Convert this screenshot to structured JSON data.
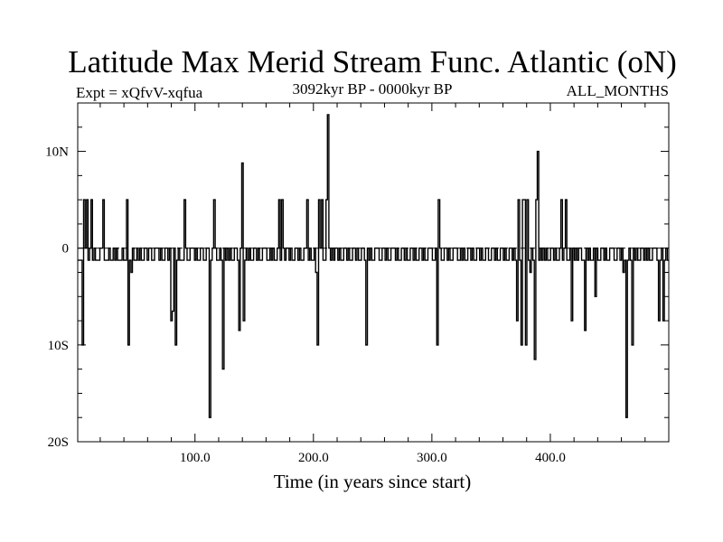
{
  "chart_data": {
    "type": "line",
    "title": "Latitude Max Merid Stream Func. Atlantic (oN)",
    "subtitle_left": "Expt = xQfvV-xqfua",
    "subtitle_center": "3092kyr BP - 0000kyr BP",
    "subtitle_right": "ALL_MONTHS",
    "xlabel": "Time (in years since start)",
    "ylabel": "",
    "xlim": [
      1,
      500
    ],
    "ylim": [
      -20,
      15
    ],
    "x_ticks": [
      {
        "value": 100,
        "label": "100.0"
      },
      {
        "value": 200,
        "label": "200.0"
      },
      {
        "value": 300,
        "label": "300.0"
      },
      {
        "value": 400,
        "label": "400.0"
      }
    ],
    "y_ticks": [
      {
        "value": 10,
        "label": "10N"
      },
      {
        "value": 0,
        "label": "0"
      },
      {
        "value": -10,
        "label": "10S"
      },
      {
        "value": -20,
        "label": "20S"
      }
    ],
    "reference_line": {
      "value": 0,
      "style": "dashed"
    },
    "grid": false,
    "baseline_states": [
      0,
      -1.25
    ],
    "series": [
      {
        "values": [
          -1.25,
          -1.25,
          -1.25,
          -10,
          5,
          0,
          5,
          -1.25,
          0,
          5,
          -1.25,
          0,
          -1.25,
          -1.25,
          -1.25,
          0,
          0,
          5,
          -1.25,
          -1.25,
          -1.25,
          0,
          -1.25,
          -1.25,
          0,
          -1.25,
          0,
          -1.25,
          -1.25,
          -1.25,
          0,
          -1.25,
          -1.25,
          5,
          -10,
          -1.25,
          -2.5,
          0,
          -1.25,
          -1.25,
          0,
          -1.25,
          0,
          -1.25,
          -1.25,
          0,
          0,
          -1.25,
          0,
          0,
          -1.25,
          -1.25,
          0,
          0,
          0,
          -1.25,
          0,
          -1.25,
          -1.25,
          0,
          0,
          -1.25,
          0,
          -7.5,
          -6.5,
          0,
          -10,
          -1.25,
          0,
          -1.25,
          -1.25,
          -1.25,
          5,
          0,
          -1.25,
          -1.25,
          0,
          0,
          0,
          -1.25,
          0,
          -1.25,
          -1.25,
          0,
          0,
          -1.25,
          -1.25,
          0,
          0,
          -17.5,
          -1.25,
          0,
          5,
          0,
          -1.25,
          -1.25,
          0,
          -1.25,
          -12.5,
          0,
          -1.25,
          0,
          -1.25,
          0,
          -1.25,
          -1.25,
          0,
          0,
          -1.25,
          -8.5,
          0,
          8.8,
          -7.5,
          -1.25,
          0,
          -1.25,
          0,
          -1.25,
          -1.25,
          0,
          0,
          -1.25,
          0,
          -1.25,
          -1.25,
          0,
          0,
          0,
          -1.25,
          -1.25,
          0,
          -1.25,
          0,
          -1.25,
          -1.25,
          0,
          5,
          -1.25,
          5,
          0,
          -1.25,
          0,
          0,
          -1.25,
          0,
          -1.25,
          -1.25,
          0,
          0,
          -1.25,
          0,
          -1.25,
          -1.25,
          0,
          0,
          5,
          -1.25,
          0,
          -1.25,
          -1.25,
          0,
          -2.5,
          -10,
          5,
          0,
          5,
          -1.25,
          -1.25,
          5,
          13.8,
          0,
          -1.25,
          0,
          -1.25,
          0,
          0,
          -1.25,
          0,
          -1.25,
          -1.25,
          0,
          0,
          -1.25,
          0,
          -1.25,
          -1.25,
          0,
          0,
          -1.25,
          0,
          -1.25,
          -1.25,
          0,
          0,
          -1.25,
          -10,
          0,
          -1.25,
          0,
          -1.25,
          -1.25,
          0,
          0,
          0,
          -1.25,
          -1.25,
          0,
          0,
          -1.25,
          0,
          -1.25,
          -1.25,
          0,
          0,
          0,
          -1.25,
          0,
          -1.25,
          -1.25,
          0,
          0,
          -1.25,
          0,
          -1.25,
          -1.25,
          0,
          0,
          -1.25,
          0,
          -1.25,
          -1.25,
          0,
          0,
          -1.25,
          0,
          -1.25,
          -1.25,
          0,
          0,
          0,
          -1.25,
          -1.25,
          0,
          -10,
          5,
          0,
          -1.25,
          -1.25,
          0,
          0,
          -1.25,
          0,
          -1.25,
          -1.25,
          0,
          0,
          0,
          -1.25,
          -1.25,
          0,
          -1.25,
          0,
          -1.25,
          -1.25,
          0,
          0,
          -1.25,
          0,
          -1.25,
          -1.25,
          0,
          0,
          -1.25,
          0,
          -1.25,
          -1.25,
          0,
          0,
          -1.25,
          -1.25,
          0,
          0,
          -1.25,
          0,
          -1.25,
          -1.25,
          0,
          0,
          -1.25,
          0,
          -1.25,
          -1.25,
          0,
          0,
          -1.25,
          0,
          -1.25,
          -7.5,
          5,
          -1.25,
          -10,
          5,
          5,
          -10,
          5,
          -1.25,
          -2.5,
          0,
          -1.25,
          -11.5,
          5,
          10,
          -1.25,
          0,
          -1.25,
          0,
          -1.25,
          0,
          -1.25,
          -1.25,
          0,
          0,
          -1.25,
          0,
          -1.25,
          -1.25,
          0,
          5,
          -1.25,
          0,
          5,
          -1.25,
          -1.25,
          0,
          -7.5,
          0,
          -1.25,
          0,
          -1.25,
          0,
          0,
          -1.25,
          -1.25,
          -8.5,
          0,
          -1.25,
          0,
          -1.25,
          -1.25,
          0,
          -5,
          0,
          -1.25,
          -1.25,
          0,
          0,
          -1.25,
          0,
          -1.25,
          -1.25,
          0,
          0,
          0,
          -1.25,
          -1.25,
          0,
          0,
          -1.25,
          0,
          -2.5,
          -1.25,
          -17.5,
          -1.25,
          0,
          -1.25,
          -10,
          0,
          -1.25,
          0,
          -1.25,
          -1.25,
          0,
          0,
          -1.25,
          0,
          -1.25,
          0,
          -1.25,
          -1.25,
          0,
          0,
          0,
          -1.25,
          -7.5,
          -1.25,
          0,
          -7.5,
          -1.25,
          0,
          -1.25,
          -1.25
        ]
      }
    ]
  }
}
